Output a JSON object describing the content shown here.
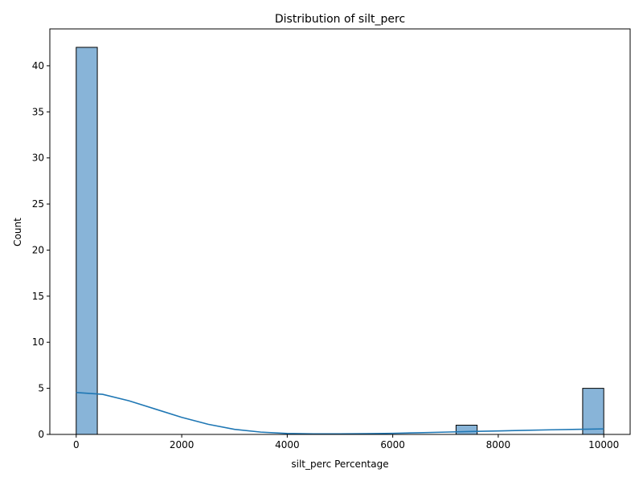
{
  "chart_data": {
    "type": "bar",
    "title": "Distribution of silt_perc",
    "xlabel": "silt_perc Percentage",
    "ylabel": "Count",
    "xlim": [
      -500,
      10500
    ],
    "ylim": [
      0,
      44
    ],
    "bin_width": 400,
    "bins": [
      {
        "start": 0,
        "end": 400,
        "count": 42
      },
      {
        "start": 7200,
        "end": 7600,
        "count": 1
      },
      {
        "start": 9600,
        "end": 10000,
        "count": 5
      }
    ],
    "xticks": [
      0,
      2000,
      4000,
      6000,
      8000,
      10000
    ],
    "yticks": [
      0,
      5,
      10,
      15,
      20,
      25,
      30,
      35,
      40
    ],
    "kde": {
      "x": [
        0,
        500,
        1000,
        1500,
        2000,
        2500,
        3000,
        3500,
        4000,
        4500,
        5000,
        5500,
        6000,
        6500,
        7000,
        7500,
        8000,
        8500,
        9000,
        9500,
        10000
      ],
      "y": [
        4.55,
        4.35,
        3.65,
        2.75,
        1.85,
        1.1,
        0.55,
        0.25,
        0.1,
        0.06,
        0.06,
        0.08,
        0.12,
        0.18,
        0.25,
        0.32,
        0.38,
        0.44,
        0.5,
        0.55,
        0.6
      ]
    },
    "colors": {
      "bar_fill": "#88b4d8",
      "bar_edge": "#000000",
      "kde_line": "#1f77b4",
      "axis": "#000000"
    },
    "grid": false,
    "legend": "none"
  }
}
